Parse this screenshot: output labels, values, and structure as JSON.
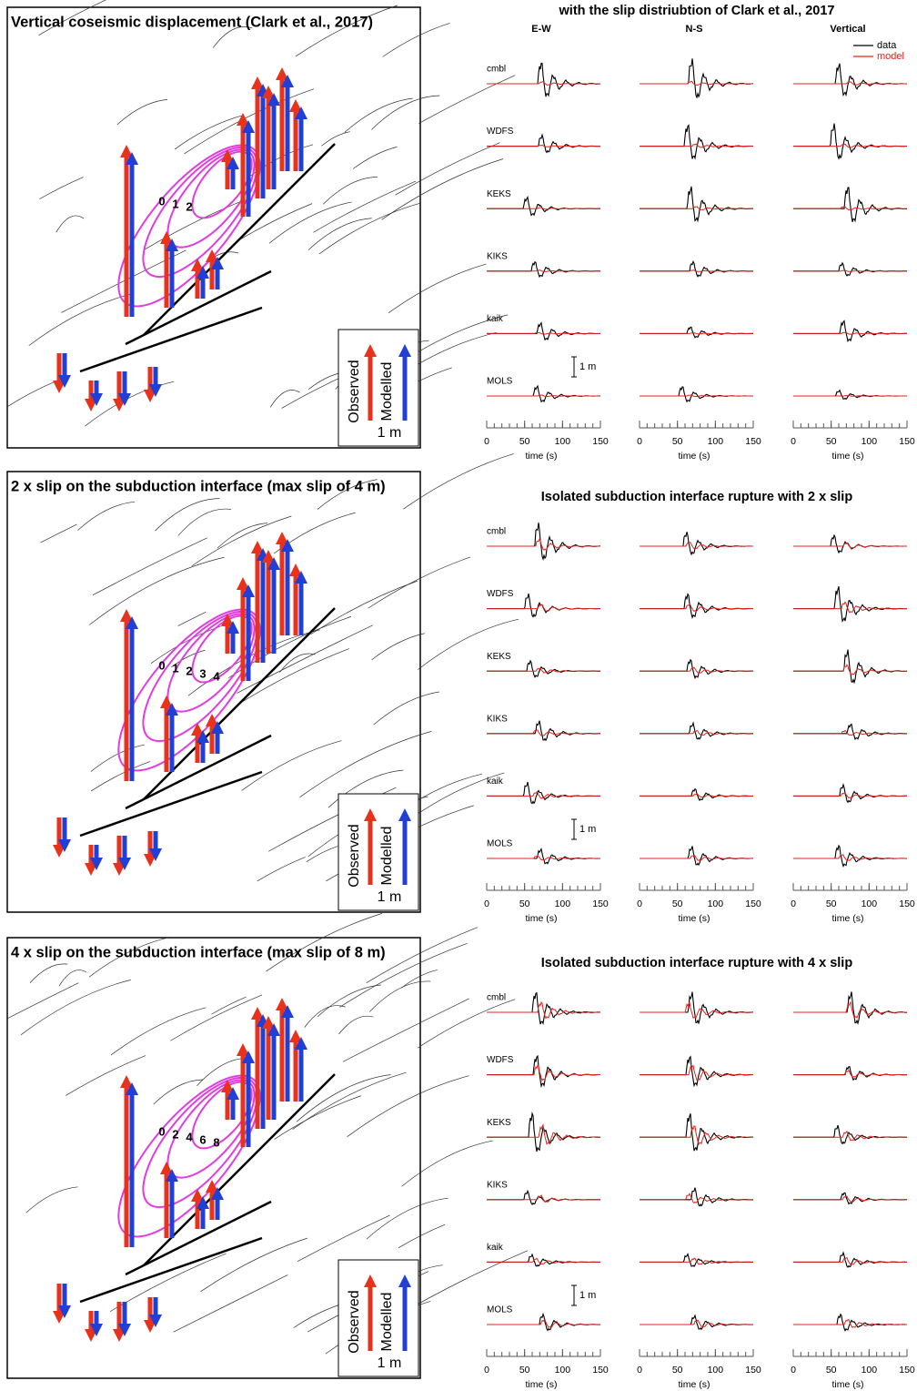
{
  "maps": [
    {
      "title": "Vertical coseismic displacement (Clark et al., 2017)",
      "contour_labels": [
        "0",
        "1",
        "2"
      ],
      "legend": {
        "observed": "Observed",
        "modelled": "Modelled",
        "scale": "1 m"
      }
    },
    {
      "title": "2 x slip on the subduction interface (max slip of 4 m)",
      "contour_labels": [
        "0",
        "1",
        "2",
        "3",
        "4"
      ],
      "legend": {
        "observed": "Observed",
        "modelled": "Modelled",
        "scale": "1 m"
      }
    },
    {
      "title": "4 x slip on the subduction interface (max slip of 8 m)",
      "contour_labels": [
        "0",
        "2",
        "4",
        "6",
        "8"
      ],
      "legend": {
        "observed": "Observed",
        "modelled": "Modelled",
        "scale": "1 m"
      }
    }
  ],
  "waveform_panels": [
    {
      "title": "with the slip distriubtion of Clark et al., 2017",
      "columns": [
        "E-W",
        "N-S",
        "Vertical"
      ],
      "series": [
        {
          "name": "data",
          "color": "#000000"
        },
        {
          "name": "model",
          "color": "#e8231c"
        }
      ],
      "stations": [
        "cmbl",
        "WDFS",
        "KEKS",
        "KIKS",
        "kaik",
        "MOLS"
      ],
      "scale_bar": "1 m",
      "xlim": [
        0,
        150
      ],
      "xticks": [
        0,
        50,
        100,
        150
      ],
      "xlabel": "time (s)"
    },
    {
      "title": "Isolated subduction interface rupture with 2 x slip",
      "stations": [
        "cmbl",
        "WDFS",
        "KEKS",
        "KIKS",
        "kaik",
        "MOLS"
      ],
      "scale_bar": "1 m",
      "xlim": [
        0,
        150
      ],
      "xticks": [
        0,
        50,
        100,
        150
      ],
      "xlabel": "time (s)"
    },
    {
      "title": "Isolated subduction interface rupture with 4 x slip",
      "stations": [
        "cmbl",
        "WDFS",
        "KEKS",
        "KIKS",
        "kaik",
        "MOLS"
      ],
      "scale_bar": "1 m",
      "xlim": [
        0,
        150
      ],
      "xticks": [
        0,
        50,
        100,
        150
      ],
      "xlabel": "time (s)"
    }
  ]
}
